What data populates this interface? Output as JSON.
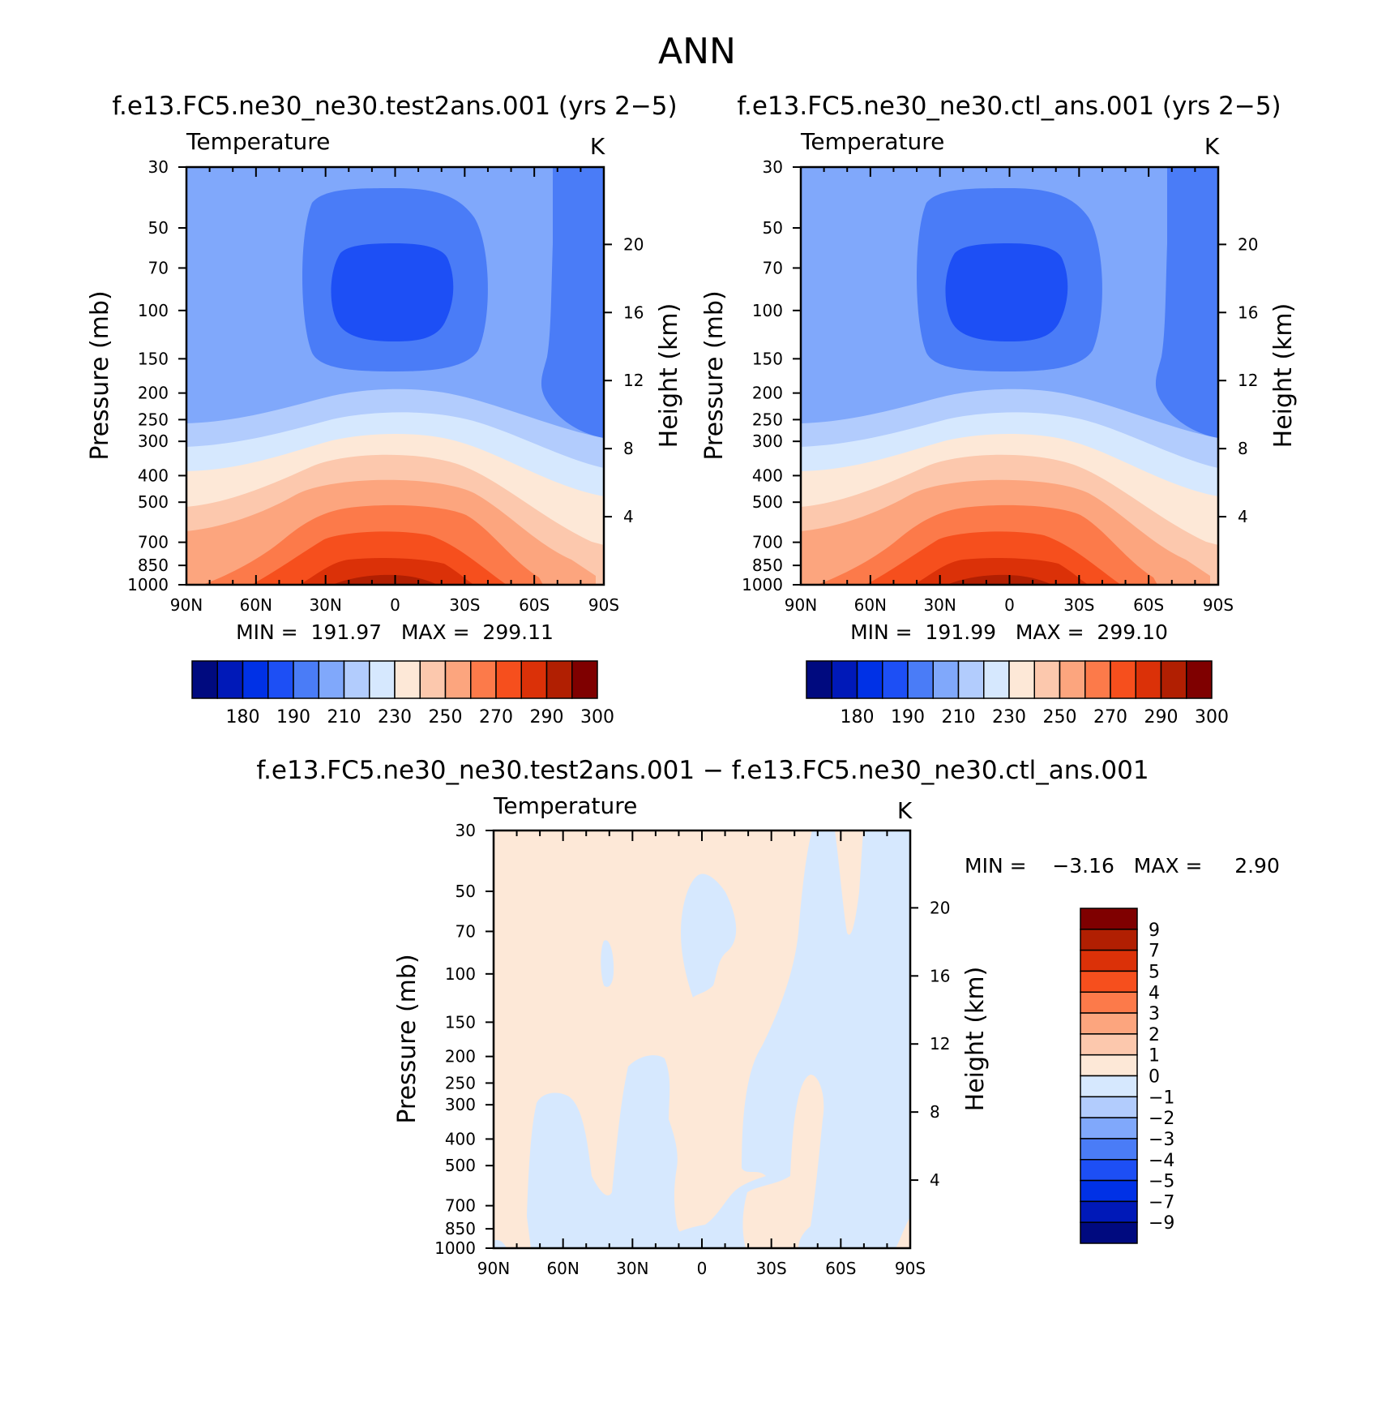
{
  "figure_title": "ANN",
  "chart_data": [
    {
      "type": "contour",
      "title": "f.e13.FC5.ne30_ne30.test2ans.001 (yrs 2−5)",
      "variable": "Temperature",
      "units": "K",
      "ylabel": "Pressure (mb)",
      "y2label": "Height (km)",
      "x_ticks": [
        "90N",
        "60N",
        "30N",
        "0",
        "30S",
        "60S",
        "90S"
      ],
      "y_ticks": [
        30,
        50,
        70,
        100,
        150,
        200,
        250,
        300,
        400,
        500,
        700,
        850,
        1000
      ],
      "y2_ticks": [
        4,
        8,
        12,
        16,
        20
      ],
      "ylim": [
        1000,
        30
      ],
      "y_scale": "log",
      "min_label": "MIN =  191.97   MAX =  299.11",
      "min": 191.97,
      "max": 299.11,
      "colorbar_labels": [
        "180",
        "190",
        "210",
        "230",
        "250",
        "270",
        "290",
        "300"
      ],
      "levels": [
        180,
        190,
        210,
        230,
        250,
        270,
        290,
        300
      ]
    },
    {
      "type": "contour",
      "title": "f.e13.FC5.ne30_ne30.ctl_ans.001 (yrs 2−5)",
      "variable": "Temperature",
      "units": "K",
      "ylabel": "Pressure (mb)",
      "y2label": "Height (km)",
      "x_ticks": [
        "90N",
        "60N",
        "30N",
        "0",
        "30S",
        "60S",
        "90S"
      ],
      "y_ticks": [
        30,
        50,
        70,
        100,
        150,
        200,
        250,
        300,
        400,
        500,
        700,
        850,
        1000
      ],
      "y2_ticks": [
        4,
        8,
        12,
        16,
        20
      ],
      "ylim": [
        1000,
        30
      ],
      "y_scale": "log",
      "min_label": "MIN =  191.99   MAX =  299.10",
      "min": 191.99,
      "max": 299.1,
      "colorbar_labels": [
        "180",
        "190",
        "210",
        "230",
        "250",
        "270",
        "290",
        "300"
      ],
      "levels": [
        180,
        190,
        210,
        230,
        250,
        270,
        290,
        300
      ]
    },
    {
      "type": "contour",
      "title": "f.e13.FC5.ne30_ne30.test2ans.001 − f.e13.FC5.ne30_ne30.ctl_ans.001",
      "variable": "Temperature",
      "units": "K",
      "ylabel": "Pressure (mb)",
      "y2label": "Height (km)",
      "x_ticks": [
        "90N",
        "60N",
        "30N",
        "0",
        "30S",
        "60S",
        "90S"
      ],
      "y_ticks": [
        30,
        50,
        70,
        100,
        150,
        200,
        250,
        300,
        400,
        500,
        700,
        850,
        1000
      ],
      "y2_ticks": [
        4,
        8,
        12,
        16,
        20
      ],
      "ylim": [
        1000,
        30
      ],
      "y_scale": "log",
      "min_label": "MIN =    −3.16   MAX =     2.90",
      "min": -3.16,
      "max": 2.9,
      "colorbar_labels": [
        "9",
        "7",
        "5",
        "4",
        "3",
        "2",
        "1",
        "0",
        "−1",
        "−2",
        "−3",
        "−4",
        "−5",
        "−7",
        "−9"
      ],
      "levels": [
        9,
        7,
        5,
        4,
        3,
        2,
        1,
        0,
        -1,
        -2,
        -3,
        -4,
        -5,
        -7,
        -9
      ]
    }
  ],
  "colors": {
    "seq": [
      "#000a7f",
      "#0019b8",
      "#0031e6",
      "#1d4ff5",
      "#4a7cf7",
      "#80a8fb",
      "#b2ccfd",
      "#d6e8fe",
      "#fde8d7",
      "#fcc8ad",
      "#fca57e",
      "#fc7a4a",
      "#f64f1d",
      "#db3108",
      "#b11f02",
      "#7f0000"
    ]
  }
}
